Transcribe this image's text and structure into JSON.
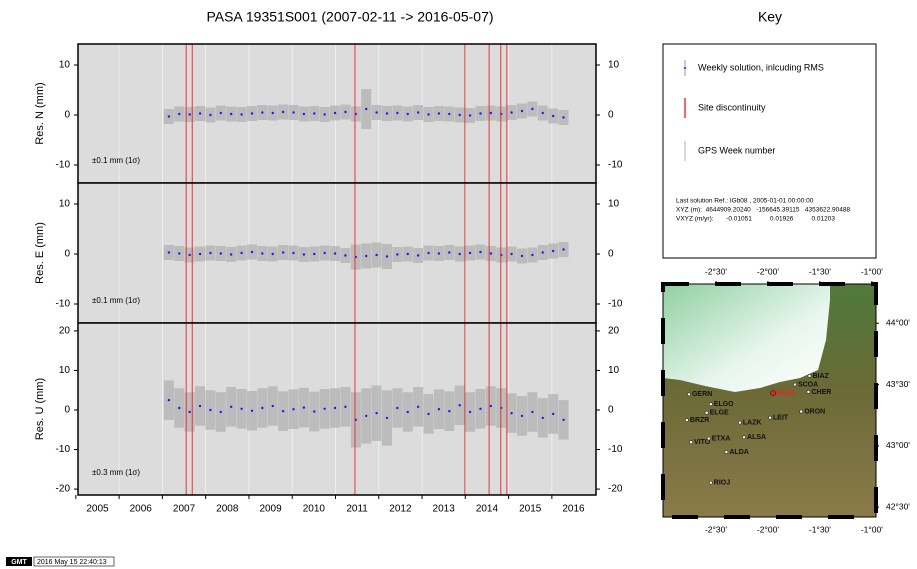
{
  "title": "PASA 19351S001 (2007-02-11 -> 2016-05-07)",
  "discontinuities": [
    2007.55,
    2007.69,
    2011.45,
    2013.99,
    2014.55,
    2014.82,
    2014.96
  ],
  "chart_data": [
    {
      "type": "scatter",
      "y_label": "Res. N (mm)",
      "annotation": "±0.1 mm (1σ)",
      "x": [
        2007.15,
        2007.39,
        2007.63,
        2007.87,
        2008.11,
        2008.35,
        2008.59,
        2008.83,
        2009.07,
        2009.31,
        2009.55,
        2009.79,
        2010.03,
        2010.27,
        2010.51,
        2010.75,
        2010.99,
        2011.23,
        2011.47,
        2011.71,
        2011.95,
        2012.19,
        2012.43,
        2012.67,
        2012.91,
        2013.15,
        2013.39,
        2013.63,
        2013.87,
        2014.11,
        2014.35,
        2014.59,
        2014.83,
        2015.07,
        2015.31,
        2015.55,
        2015.79,
        2016.03,
        2016.27
      ],
      "values": [
        -0.3,
        0.2,
        0.1,
        0.3,
        0.0,
        0.4,
        0.2,
        0.1,
        0.3,
        0.5,
        0.4,
        0.6,
        0.5,
        0.2,
        0.3,
        0.1,
        0.4,
        0.6,
        0.2,
        1.2,
        0.5,
        0.3,
        0.4,
        0.2,
        0.5,
        0.1,
        0.3,
        0.2,
        0.0,
        -0.1,
        0.3,
        0.4,
        0.2,
        0.5,
        0.8,
        1.2,
        0.4,
        -0.2,
        -0.5
      ],
      "errors": [
        1.5,
        1.5,
        1.5,
        1.5,
        1.5,
        1.5,
        1.5,
        1.5,
        1.5,
        1.5,
        1.5,
        1.5,
        1.5,
        1.5,
        1.5,
        1.5,
        1.5,
        1.5,
        1.5,
        4,
        1.5,
        1.5,
        1.5,
        1.5,
        1.5,
        1.5,
        1.5,
        1.5,
        1.5,
        1.5,
        1.5,
        1.5,
        1.5,
        1.5,
        1.5,
        1.5,
        1.5,
        1.5,
        1.5
      ],
      "color": "#1a1aff",
      "xlim": [
        2005.05,
        2017.02
      ],
      "ylim": [
        -13.6,
        14.2
      ],
      "yticks": [
        -10,
        0,
        10
      ]
    },
    {
      "type": "scatter",
      "y_label": "Res. E (mm)",
      "annotation": "±0.1 mm (1σ)",
      "x": [
        2007.15,
        2007.39,
        2007.63,
        2007.87,
        2008.11,
        2008.35,
        2008.59,
        2008.83,
        2009.07,
        2009.31,
        2009.55,
        2009.79,
        2010.03,
        2010.27,
        2010.51,
        2010.75,
        2010.99,
        2011.23,
        2011.47,
        2011.71,
        2011.95,
        2012.19,
        2012.43,
        2012.67,
        2012.91,
        2013.15,
        2013.39,
        2013.63,
        2013.87,
        2014.11,
        2014.35,
        2014.59,
        2014.83,
        2015.07,
        2015.31,
        2015.55,
        2015.79,
        2016.03,
        2016.27
      ],
      "values": [
        0.3,
        0.1,
        -0.2,
        0.0,
        0.2,
        0.1,
        -0.1,
        0.2,
        0.4,
        0.1,
        0.0,
        0.3,
        0.2,
        -0.1,
        0.0,
        0.2,
        0.1,
        -0.3,
        -0.6,
        -0.4,
        -0.2,
        -0.5,
        -0.1,
        0.0,
        -0.3,
        0.2,
        0.1,
        0.3,
        0.0,
        0.2,
        0.4,
        0.1,
        -0.2,
        0.0,
        -0.4,
        -0.2,
        0.3,
        0.6,
        0.9
      ],
      "errors": [
        1.5,
        1.5,
        1.5,
        1.5,
        1.5,
        1.5,
        1.5,
        1.5,
        1.5,
        1.5,
        1.5,
        1.5,
        1.5,
        1.5,
        1.5,
        1.5,
        1.5,
        1.5,
        2.5,
        2.5,
        2.5,
        2.5,
        1.5,
        1.5,
        1.5,
        1.5,
        1.5,
        1.5,
        1.5,
        1.5,
        1.5,
        1.5,
        1.5,
        1.5,
        1.5,
        1.5,
        1.5,
        1.5,
        1.5
      ],
      "color": "#1a1aff",
      "xlim": [
        2005.05,
        2017.02
      ],
      "ylim": [
        -13.8,
        14.2
      ],
      "yticks": [
        -10,
        0,
        10
      ]
    },
    {
      "type": "scatter",
      "y_label": "Res. U (mm)",
      "annotation": "±0.3 mm (1σ)",
      "x": [
        2007.15,
        2007.39,
        2007.63,
        2007.87,
        2008.11,
        2008.35,
        2008.59,
        2008.83,
        2009.07,
        2009.31,
        2009.55,
        2009.79,
        2010.03,
        2010.27,
        2010.51,
        2010.75,
        2010.99,
        2011.23,
        2011.47,
        2011.71,
        2011.95,
        2012.19,
        2012.43,
        2012.67,
        2012.91,
        2013.15,
        2013.39,
        2013.63,
        2013.87,
        2014.11,
        2014.35,
        2014.59,
        2014.83,
        2015.07,
        2015.31,
        2015.55,
        2015.79,
        2016.03,
        2016.27
      ],
      "values": [
        2.5,
        0.5,
        -0.5,
        1.0,
        0.0,
        -0.5,
        0.8,
        0.3,
        -0.2,
        0.5,
        1.0,
        -0.3,
        0.2,
        0.6,
        -0.4,
        0.3,
        0.5,
        0.8,
        -2.5,
        -1.5,
        -0.8,
        -2.0,
        0.5,
        -0.5,
        0.8,
        -1.0,
        0.2,
        -0.3,
        1.2,
        -0.5,
        0.3,
        1.0,
        0.5,
        -0.8,
        -1.5,
        -0.5,
        -2.0,
        -1.0,
        -2.5
      ],
      "errors": [
        5,
        5,
        5,
        5,
        5,
        5,
        5,
        5,
        5,
        5,
        5,
        5,
        5,
        5,
        5,
        5,
        5,
        5,
        7,
        7,
        7,
        7,
        5,
        5,
        5,
        5,
        5,
        5,
        5,
        5,
        5,
        5,
        5,
        5,
        5,
        5,
        5,
        5,
        5
      ],
      "color": "#1a1aff",
      "xlim": [
        2005.05,
        2017.02
      ],
      "ylim": [
        -21.5,
        22
      ],
      "yticks": [
        -20,
        -10,
        0,
        10,
        20
      ],
      "xticks": [
        2005,
        2006,
        2007,
        2008,
        2009,
        2010,
        2011,
        2012,
        2013,
        2014,
        2015,
        2016
      ]
    }
  ],
  "key": {
    "title": "Key",
    "items": [
      "Weekly solution, inlcuding RMS",
      "Site discontinuity",
      "GPS Week number"
    ],
    "info": [
      "Last solution Ref.: IGb08 , 2005-01-01 00:00:00",
      "XYZ (m):  4644909.20240   -156645.39115   4353622.90488",
      "VXYZ (m/yr):       -0.01051          0.01926          0.01203"
    ]
  },
  "map": {
    "lonlim": [
      -3.01,
      -0.96
    ],
    "latlim": [
      42.42,
      44.32
    ],
    "lonticks": [
      {
        "value": -2.5,
        "label": "-2°30'"
      },
      {
        "value": -2.0,
        "label": "-2°00'"
      },
      {
        "value": -1.5,
        "label": "-1°30'"
      },
      {
        "value": -1.0,
        "label": "-1°00'"
      }
    ],
    "latticks": [
      {
        "value": 44.0,
        "label": "44°00'"
      },
      {
        "value": 43.5,
        "label": "43°30'"
      },
      {
        "value": 43.0,
        "label": "43°00'"
      },
      {
        "value": 42.5,
        "label": "42°30'"
      }
    ],
    "stations": [
      {
        "name": "BIAZ",
        "lon": -1.6,
        "lat": 43.57
      },
      {
        "name": "SCOA",
        "lon": -1.74,
        "lat": 43.5
      },
      {
        "name": "CHER",
        "lon": -1.61,
        "lat": 43.44
      },
      {
        "name": "PASA",
        "lon": -1.95,
        "lat": 43.43
      },
      {
        "name": "GERN",
        "lon": -2.76,
        "lat": 43.42
      },
      {
        "name": "ELGO",
        "lon": -2.55,
        "lat": 43.34
      },
      {
        "name": "ELGE",
        "lon": -2.59,
        "lat": 43.27
      },
      {
        "name": "BRZR",
        "lon": -2.78,
        "lat": 43.21
      },
      {
        "name": "LAZK",
        "lon": -2.27,
        "lat": 43.19
      },
      {
        "name": "LEIT",
        "lon": -1.98,
        "lat": 43.23
      },
      {
        "name": "ORON",
        "lon": -1.68,
        "lat": 43.28
      },
      {
        "name": "ALSA",
        "lon": -2.23,
        "lat": 43.07
      },
      {
        "name": "VITO",
        "lon": -2.74,
        "lat": 43.03
      },
      {
        "name": "ETXA",
        "lon": -2.57,
        "lat": 43.06
      },
      {
        "name": "ALDA",
        "lon": -2.4,
        "lat": 42.95
      },
      {
        "name": "RIOJ",
        "lon": -2.55,
        "lat": 42.7
      }
    ]
  },
  "footer": {
    "logo": "GMT",
    "timestamp": "2016 May 15 22:40:13"
  }
}
